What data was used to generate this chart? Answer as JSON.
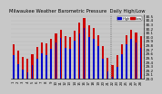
{
  "title": "Milwaukee Weather Barometric Pressure",
  "subtitle": "Daily High/Low",
  "legend_labels": [
    "High",
    "Low"
  ],
  "bar_color_high": "#0000cc",
  "bar_color_low": "#cc0000",
  "background_color": "#c8c8c8",
  "plot_bg_color": "#c8c8c8",
  "ylim_min": 29.0,
  "ylim_max": 30.55,
  "yticks": [
    29.0,
    29.1,
    29.2,
    29.3,
    29.4,
    29.5,
    29.6,
    29.7,
    29.8,
    29.9,
    30.0,
    30.1,
    30.2,
    30.3,
    30.4,
    30.5
  ],
  "ylabel_fontsize": 3.0,
  "title_fontsize": 3.8,
  "dates": [
    "1",
    "2",
    "3",
    "4",
    "5",
    "6",
    "7",
    "8",
    "9",
    "10",
    "11",
    "12",
    "13",
    "14",
    "15",
    "16",
    "17",
    "18",
    "19",
    "20",
    "21",
    "22",
    "23",
    "24",
    "25",
    "26",
    "27",
    "28"
  ],
  "highs": [
    29.82,
    29.68,
    29.52,
    29.48,
    29.6,
    29.76,
    29.88,
    29.85,
    29.95,
    30.08,
    30.18,
    30.02,
    30.0,
    30.15,
    30.35,
    30.45,
    30.28,
    30.22,
    30.05,
    29.78,
    29.5,
    29.32,
    29.58,
    29.82,
    30.05,
    30.18,
    30.12,
    30.02
  ],
  "lows": [
    29.58,
    29.35,
    29.22,
    29.15,
    29.32,
    29.48,
    29.62,
    29.58,
    29.72,
    29.88,
    29.98,
    29.75,
    29.72,
    29.92,
    30.08,
    30.22,
    30.0,
    29.95,
    29.78,
    29.48,
    29.18,
    29.05,
    29.28,
    29.6,
    29.82,
    29.95,
    29.88,
    29.75
  ],
  "dashed_line_after": 21,
  "bar_width": 0.42
}
